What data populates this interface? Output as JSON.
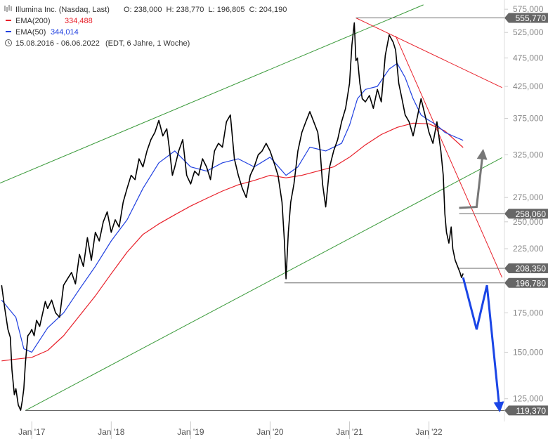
{
  "header": {
    "instrument": "Illumina Inc. (Nasdaq, Last)",
    "ohlc": "O: 238,000  H: 238,770  L: 196,805  C: 204,190",
    "ema200_label": "EMA(200)",
    "ema200_value": "334,488",
    "ema50_label": "EMA(50)",
    "ema50_value": "344,014",
    "period": "15.08.2016 - 06.06.2022",
    "period_note": "(EDT, 6 Jahre, 1 Woche)"
  },
  "colors": {
    "price": "#000000",
    "ema200": "#e8202a",
    "ema50": "#2040e0",
    "channel": "#3a9a3a",
    "trendline": "#e8202a",
    "level_line": "#666666",
    "projection_up": "#777777",
    "projection_down": "#1a45e6",
    "axis_text": "#888888"
  },
  "chart_data": {
    "type": "line",
    "title": "Illumina Inc. (Nasdaq, Last)",
    "x_range": [
      "2016-08-15",
      "2022-06-06"
    ],
    "ylim": [
      115000,
      580000
    ],
    "y_scale": "log",
    "y_ticks": [
      125000,
      150000,
      175000,
      225000,
      250000,
      275000,
      325000,
      375000,
      425000,
      475000,
      525000,
      575000
    ],
    "y_tick_labels": [
      "125,000",
      "150,000",
      "175,000",
      "225,000",
      "250,000",
      "275,000",
      "325,000",
      "375,000",
      "425,000",
      "475,000",
      "525,000",
      "575,000"
    ],
    "x_tick_labels": [
      "Jan '17",
      "Jan '18",
      "Jan '19",
      "Jan '20",
      "Jan '21",
      "Jan '22"
    ],
    "x_tick_years": [
      2017,
      2018,
      2019,
      2020,
      2021,
      2022
    ],
    "series": [
      {
        "name": "Illumina",
        "x": [
          2016.62,
          2016.66,
          2016.7,
          2016.73,
          2016.75,
          2016.78,
          2016.8,
          2016.83,
          2016.86,
          2016.88,
          2016.9,
          2016.92,
          2016.95,
          2016.98,
          2017.0,
          2017.03,
          2017.06,
          2017.1,
          2017.13,
          2017.17,
          2017.2,
          2017.25,
          2017.3,
          2017.35,
          2017.4,
          2017.45,
          2017.5,
          2017.55,
          2017.6,
          2017.65,
          2017.7,
          2017.75,
          2017.8,
          2017.85,
          2017.9,
          2017.95,
          2018.0,
          2018.05,
          2018.1,
          2018.15,
          2018.2,
          2018.25,
          2018.3,
          2018.35,
          2018.4,
          2018.45,
          2018.5,
          2018.55,
          2018.6,
          2018.65,
          2018.7,
          2018.73,
          2018.77,
          2018.8,
          2018.85,
          2018.9,
          2018.95,
          2019.0,
          2019.05,
          2019.1,
          2019.15,
          2019.2,
          2019.25,
          2019.3,
          2019.35,
          2019.4,
          2019.45,
          2019.5,
          2019.55,
          2019.6,
          2019.65,
          2019.7,
          2019.75,
          2019.8,
          2019.85,
          2019.9,
          2019.95,
          2020.0,
          2020.05,
          2020.1,
          2020.15,
          2020.18,
          2020.2,
          2020.23,
          2020.26,
          2020.3,
          2020.35,
          2020.4,
          2020.45,
          2020.5,
          2020.55,
          2020.6,
          2020.63,
          2020.66,
          2020.7,
          2020.75,
          2020.8,
          2020.85,
          2020.9,
          2020.95,
          2021.0,
          2021.03,
          2021.06,
          2021.08,
          2021.1,
          2021.13,
          2021.16,
          2021.2,
          2021.25,
          2021.3,
          2021.35,
          2021.4,
          2021.45,
          2021.5,
          2021.55,
          2021.58,
          2021.62,
          2021.66,
          2021.7,
          2021.75,
          2021.8,
          2021.85,
          2021.9,
          2021.95,
          2022.0,
          2022.05,
          2022.1,
          2022.15,
          2022.18,
          2022.2,
          2022.22,
          2022.25,
          2022.28,
          2022.3,
          2022.33,
          2022.36,
          2022.39,
          2022.41,
          2022.43
        ],
        "values": [
          195000,
          178000,
          164000,
          159000,
          140000,
          127000,
          130000,
          122000,
          119500,
          124000,
          130000,
          144000,
          160000,
          162000,
          164000,
          160000,
          170000,
          166000,
          173000,
          183000,
          178000,
          184000,
          175000,
          172000,
          195000,
          200000,
          205000,
          196000,
          220000,
          210000,
          235000,
          215000,
          240000,
          232000,
          250000,
          260000,
          240000,
          252000,
          245000,
          270000,
          285000,
          300000,
          295000,
          320000,
          310000,
          330000,
          345000,
          355000,
          372000,
          350000,
          360000,
          335000,
          300000,
          310000,
          330000,
          345000,
          300000,
          290000,
          305000,
          300000,
          320000,
          310000,
          295000,
          330000,
          340000,
          335000,
          370000,
          380000,
          320000,
          300000,
          285000,
          275000,
          300000,
          310000,
          325000,
          330000,
          340000,
          330000,
          315000,
          300000,
          270000,
          232000,
          200000,
          240000,
          270000,
          290000,
          330000,
          355000,
          370000,
          385000,
          370000,
          355000,
          330000,
          290000,
          265000,
          310000,
          330000,
          345000,
          370000,
          390000,
          430000,
          500000,
          545000,
          470000,
          475000,
          430000,
          405000,
          400000,
          410000,
          390000,
          420000,
          400000,
          480000,
          520000,
          505000,
          490000,
          430000,
          405000,
          380000,
          370000,
          350000,
          375000,
          405000,
          380000,
          355000,
          340000,
          370000,
          330000,
          300000,
          258000,
          240000,
          230000,
          245000,
          225000,
          215000,
          210000,
          205000,
          201000,
          204190
        ]
      },
      {
        "name": "EMA(200)",
        "x": [
          2016.62,
          2016.8,
          2017.0,
          2017.2,
          2017.4,
          2017.6,
          2017.8,
          2018.0,
          2018.2,
          2018.4,
          2018.6,
          2018.8,
          2019.0,
          2019.2,
          2019.4,
          2019.6,
          2019.8,
          2020.0,
          2020.2,
          2020.4,
          2020.6,
          2020.8,
          2021.0,
          2021.2,
          2021.4,
          2021.6,
          2021.8,
          2022.0,
          2022.2,
          2022.43
        ],
        "values": [
          145000,
          146000,
          147000,
          151000,
          160000,
          173000,
          187000,
          204000,
          222000,
          238000,
          248000,
          257000,
          266000,
          274000,
          282000,
          289000,
          294000,
          300000,
          297000,
          300000,
          305000,
          310000,
          322000,
          338000,
          352000,
          362000,
          368000,
          367000,
          357000,
          334488
        ]
      },
      {
        "name": "EMA(50)",
        "x": [
          2016.62,
          2016.8,
          2016.9,
          2017.0,
          2017.2,
          2017.4,
          2017.6,
          2017.8,
          2018.0,
          2018.2,
          2018.4,
          2018.6,
          2018.8,
          2019.0,
          2019.2,
          2019.4,
          2019.6,
          2019.8,
          2020.0,
          2020.2,
          2020.35,
          2020.5,
          2020.7,
          2020.9,
          2021.0,
          2021.1,
          2021.2,
          2021.35,
          2021.5,
          2021.6,
          2021.7,
          2021.8,
          2021.9,
          2022.0,
          2022.1,
          2022.2,
          2022.3,
          2022.43
        ],
        "values": [
          184000,
          172000,
          152000,
          150000,
          165000,
          175000,
          192000,
          210000,
          232000,
          252000,
          285000,
          315000,
          330000,
          310000,
          305000,
          315000,
          320000,
          310000,
          322000,
          300000,
          310000,
          335000,
          330000,
          340000,
          365000,
          405000,
          420000,
          425000,
          455000,
          465000,
          440000,
          405000,
          380000,
          372000,
          365000,
          355000,
          350000,
          344014
        ]
      }
    ],
    "levels": [
      555770,
      258060,
      208350,
      196780,
      119370
    ],
    "level_labels": [
      "555,770",
      "258,060",
      "208,350",
      "196,780",
      "119,370"
    ],
    "channel_lower": {
      "x": [
        2016.92,
        2022.92
      ],
      "values": [
        119370,
        321500
      ]
    },
    "channel_upper": {
      "x": [
        2015.8,
        2021.93
      ],
      "values": [
        262000,
        585000
      ]
    },
    "trendlines": [
      {
        "x": [
          2021.08,
          2022.92
        ],
        "values": [
          555770,
          423000
        ]
      },
      {
        "x": [
          2021.58,
          2022.92
        ],
        "values": [
          518000,
          201000
        ]
      }
    ],
    "projections": [
      {
        "name": "up",
        "x": [
          2022.38,
          2022.6,
          2022.68
        ],
        "values": [
          264000,
          265000,
          330000
        ]
      },
      {
        "name": "down",
        "x": [
          2022.43,
          2022.6,
          2022.73,
          2022.89
        ],
        "values": [
          201000,
          164000,
          195000,
          119500
        ]
      }
    ],
    "grid": false
  }
}
